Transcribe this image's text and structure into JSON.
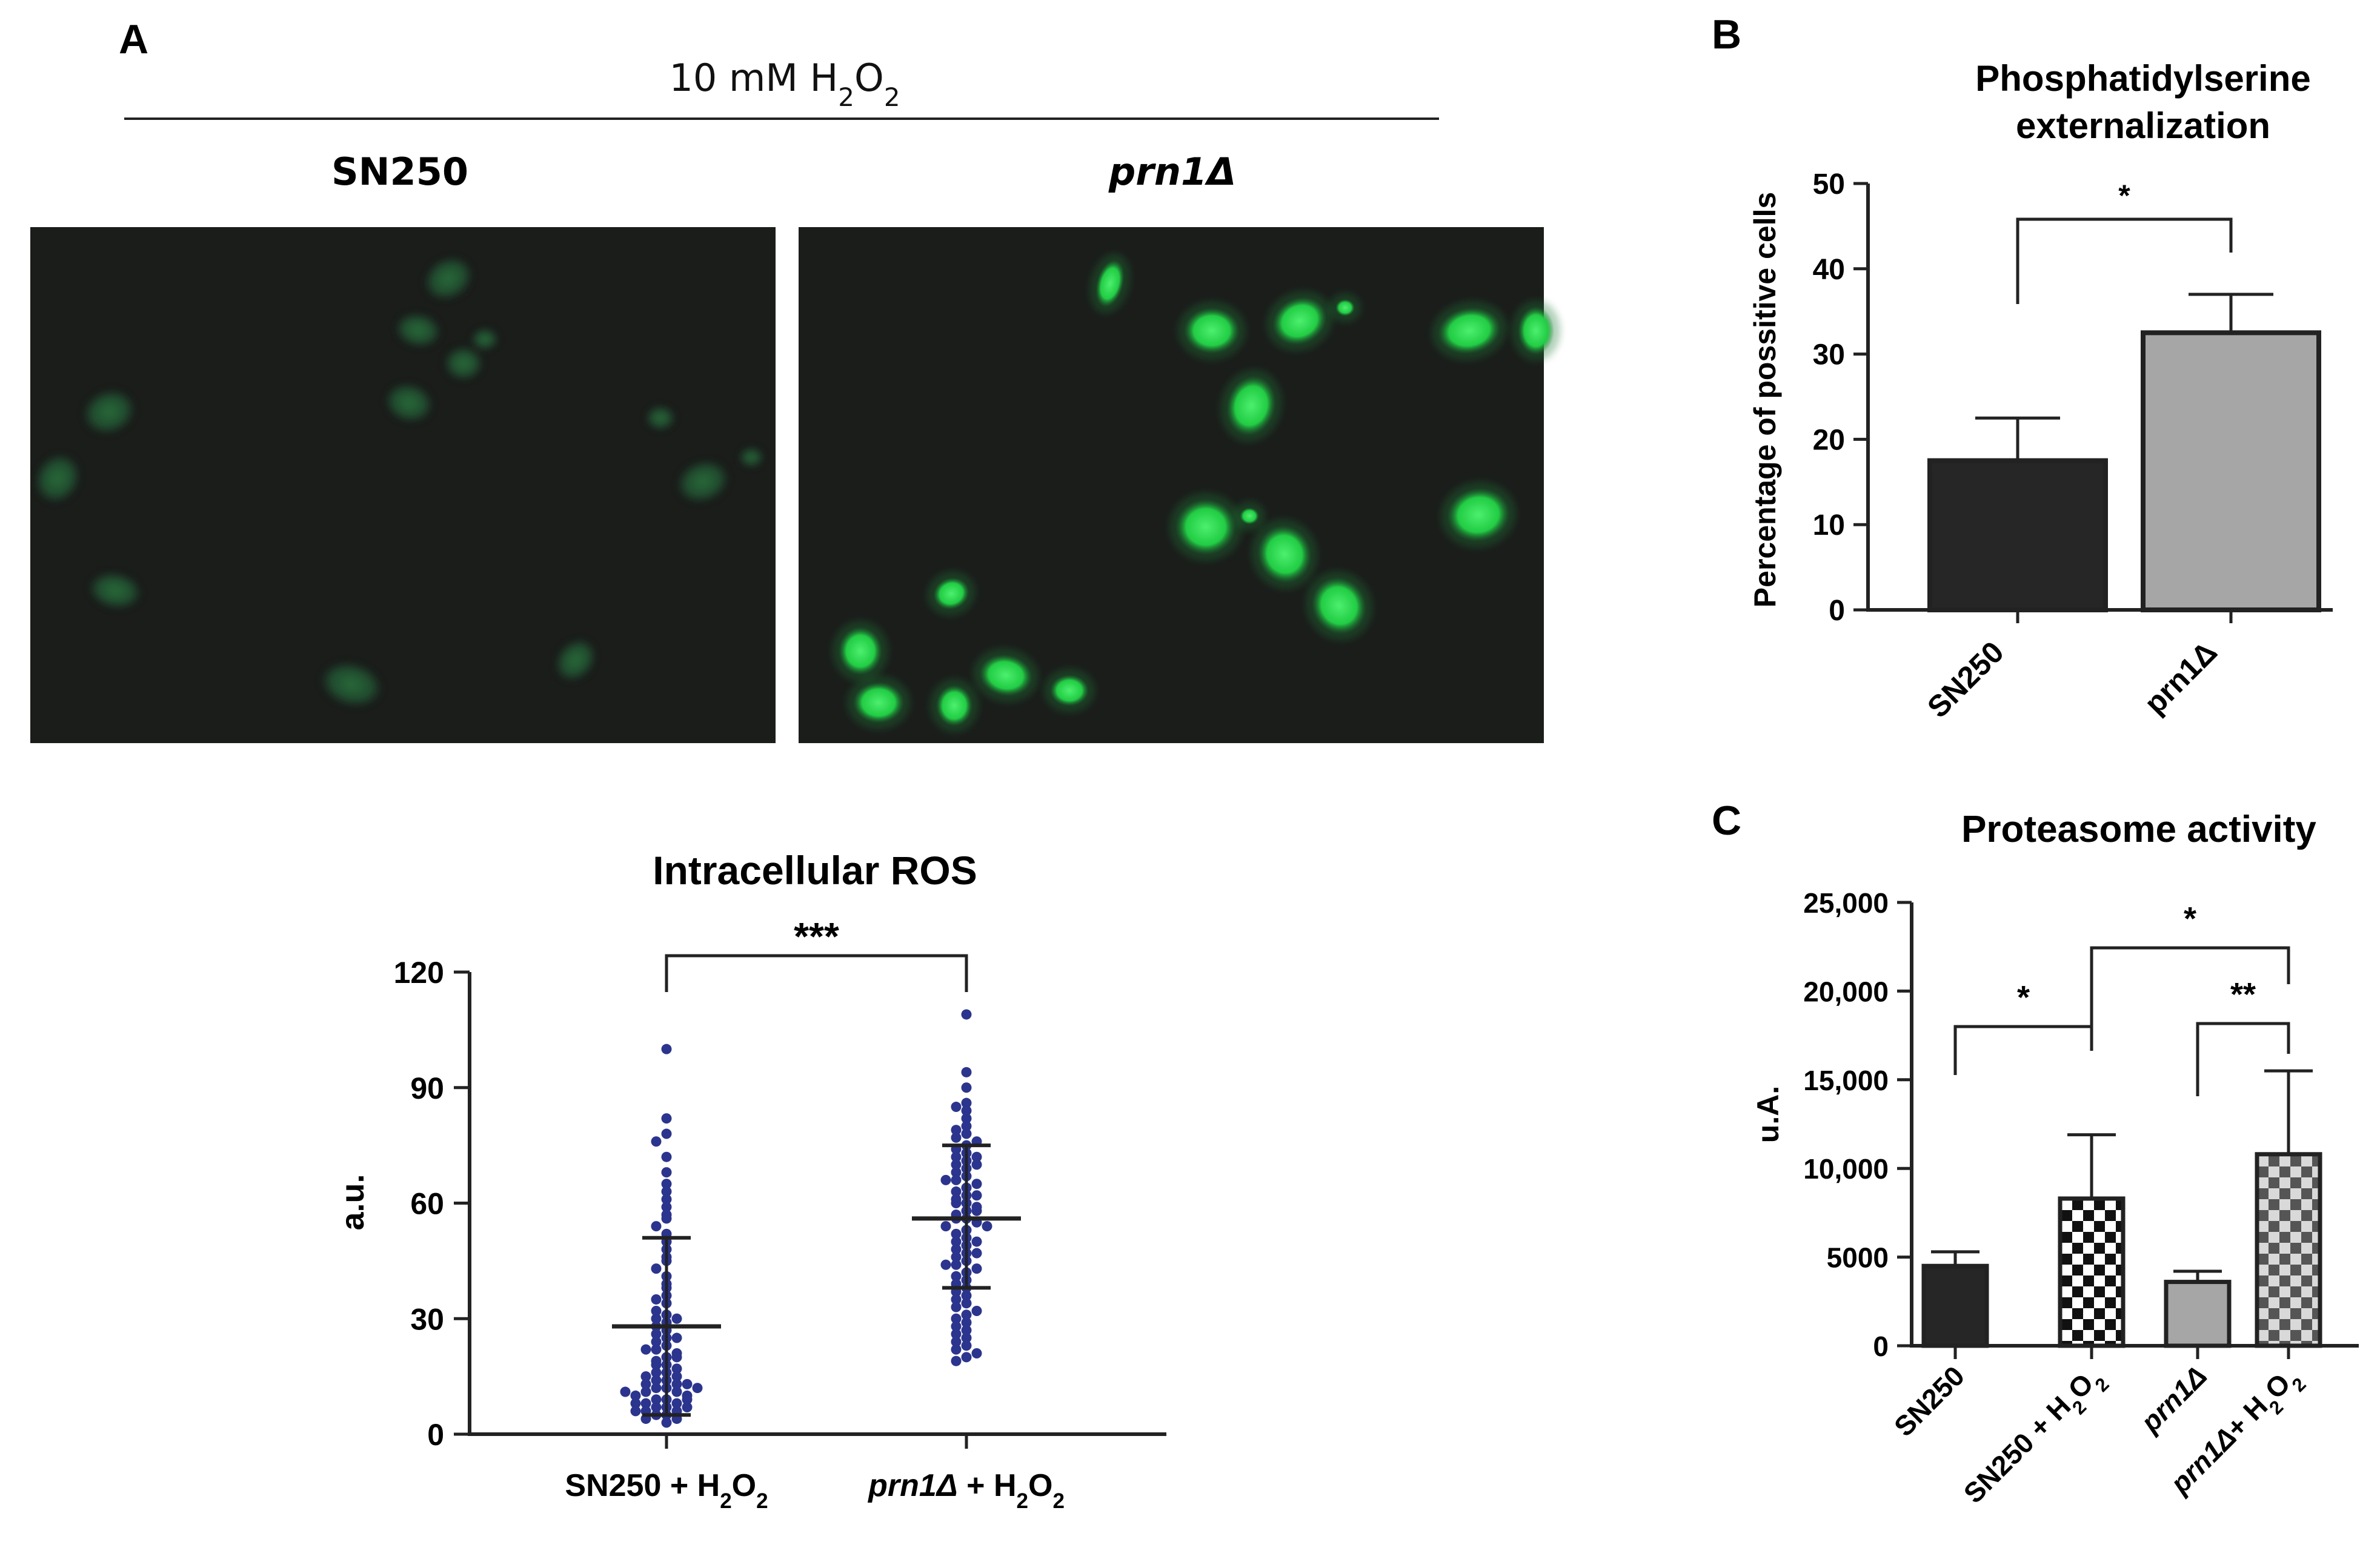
{
  "panel_a": {
    "label": "A",
    "header": {
      "pre": "10 mM H",
      "sub1": "2",
      "mid": "O",
      "sub2": "2"
    },
    "image_left_title": "SN250",
    "image_right_title": "prn1Δ",
    "micrographs": [
      {
        "strain": "SN250",
        "fluorescence": "dim",
        "color": "#2a7a3e"
      },
      {
        "strain": "prn1Δ",
        "fluorescence": "bright",
        "color": "#33dd55"
      }
    ]
  },
  "panel_b": {
    "label": "B"
  },
  "panel_c": {
    "label": "C"
  },
  "chart_data": [
    {
      "id": "ros",
      "type": "scatter",
      "title": "Intracellular ROS",
      "ylabel": "a.u.",
      "ylim": [
        0,
        120
      ],
      "yticks": [
        "0",
        "30",
        "60",
        "90",
        "120"
      ],
      "categories": [
        {
          "parts": [
            {
              "t": "SN250 + H"
            },
            {
              "t": "2",
              "sub": true
            },
            {
              "t": "O"
            },
            {
              "t": "2",
              "sub": true
            }
          ]
        },
        {
          "parts": [
            {
              "t": "prn1Δ",
              "italic": true
            },
            {
              "t": " + H"
            },
            {
              "t": "2",
              "sub": true
            },
            {
              "t": "O"
            },
            {
              "t": "2",
              "sub": true
            }
          ]
        }
      ],
      "series": [
        {
          "mean": 28,
          "sd_low": 5,
          "sd_high": 51,
          "min": 3,
          "max": 100,
          "points": [
            100,
            82,
            78,
            76,
            72,
            68,
            65,
            63,
            61,
            59,
            57,
            56,
            54,
            52,
            50,
            48,
            46,
            45,
            43,
            41,
            39,
            38,
            36,
            35,
            34,
            32,
            31,
            30,
            29,
            28,
            27,
            26,
            25,
            24,
            23,
            22,
            21,
            20,
            19,
            18,
            18,
            17,
            16,
            16,
            15,
            14,
            14,
            13,
            13,
            12,
            12,
            11,
            11,
            10,
            10,
            9,
            9,
            8,
            8,
            7,
            7,
            6,
            6,
            5,
            5,
            4,
            4,
            3,
            12,
            15,
            20,
            25,
            30,
            13,
            11,
            9,
            8,
            7,
            6,
            22
          ]
        },
        {
          "mean": 56,
          "sd_low": 38,
          "sd_high": 75,
          "min": 19,
          "max": 109,
          "points": [
            109,
            94,
            90,
            86,
            85,
            84,
            82,
            80,
            79,
            78,
            77,
            76,
            75,
            74,
            73,
            72,
            71,
            70,
            69,
            68,
            67,
            66,
            65,
            64,
            63,
            62,
            61,
            60,
            60,
            59,
            58,
            57,
            56,
            56,
            55,
            54,
            53,
            52,
            51,
            50,
            49,
            48,
            47,
            46,
            45,
            44,
            43,
            42,
            41,
            40,
            39,
            38,
            37,
            36,
            35,
            34,
            33,
            32,
            31,
            30,
            29,
            28,
            27,
            26,
            25,
            24,
            23,
            22,
            21,
            20,
            19,
            58,
            62,
            66,
            70,
            72,
            54,
            50,
            47,
            44
          ]
        }
      ],
      "significance": "***",
      "point_color": "#2b3590"
    },
    {
      "id": "ps",
      "type": "bar",
      "title": [
        "Phosphatidylserine",
        "externalization"
      ],
      "ylabel": "Percentage of possitive cells",
      "ylim": [
        0,
        50
      ],
      "yticks": [
        "0",
        "10",
        "20",
        "30",
        "40",
        "50"
      ],
      "categories": [
        "SN250",
        "prn1Δ"
      ],
      "values": [
        17.5,
        32.5
      ],
      "errors": [
        5,
        4.5
      ],
      "colors": [
        "#262626",
        "#a6a6a6"
      ],
      "significance": "*"
    },
    {
      "id": "prot",
      "type": "bar",
      "title": "Proteasome activity",
      "ylabel": "u.A.",
      "ylim": [
        0,
        25000
      ],
      "yticks": [
        "0",
        "5000",
        "10,000",
        "15,000",
        "20,000",
        "25,000"
      ],
      "categories": [
        {
          "parts": [
            {
              "t": "SN250"
            }
          ]
        },
        {
          "parts": [
            {
              "t": "SN250 + H"
            },
            {
              "t": "2",
              "sub": true
            },
            {
              "t": "O"
            },
            {
              "t": "2",
              "sub": true
            }
          ]
        },
        {
          "parts": [
            {
              "t": "prn1Δ",
              "italic": true
            }
          ]
        },
        {
          "parts": [
            {
              "t": "prn1Δ",
              "italic": true
            },
            {
              "t": "+ H"
            },
            {
              "t": "2",
              "sub": true
            },
            {
              "t": "O"
            },
            {
              "t": "2",
              "sub": true
            }
          ]
        }
      ],
      "values": [
        4500,
        8300,
        3600,
        10800
      ],
      "errors": [
        800,
        3600,
        600,
        4700
      ],
      "fills": [
        "solid-dark",
        "checker-black",
        "solid-gray",
        "checker-gray"
      ],
      "significance": [
        {
          "pair": [
            0,
            1
          ],
          "label": "*"
        },
        {
          "pair": [
            1,
            3
          ],
          "label": "*"
        },
        {
          "pair": [
            2,
            3
          ],
          "label": "**"
        }
      ]
    }
  ]
}
